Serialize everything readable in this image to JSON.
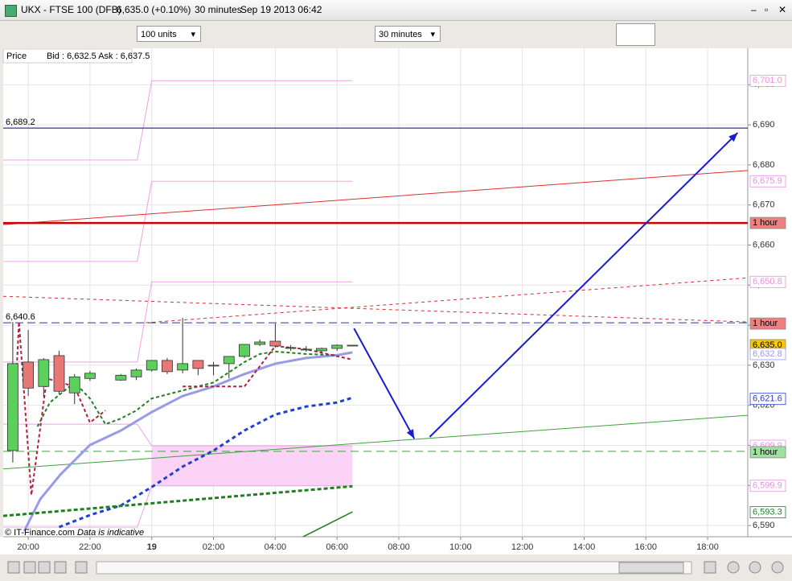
{
  "window": {
    "symbol": "UKX - FTSE 100 (DFB)",
    "quote": "6,635.0 (+0.10%)",
    "timeframe": "30 minutes",
    "datetime": "Sep 19 2013 06:42",
    "units_select": "100 units",
    "interval_select": "30 minutes",
    "price_label": "Price",
    "bid_ask": "Bid : 6,632.5 Ask : 6,637.5",
    "copyright": "© IT-Finance.com",
    "disclaimer": "Data is indicative"
  },
  "chart_data": {
    "type": "candlestick",
    "x": [
      -0.5,
      0,
      0.5,
      1,
      1.5,
      2,
      3,
      3.5,
      4,
      4.5,
      5,
      5.5,
      6,
      6.5,
      7,
      7.5,
      8,
      8.5,
      9,
      9.5,
      10,
      10.5
    ],
    "open": [
      6608.7,
      6630.8,
      6624.7,
      6632.4,
      6623.1,
      6626.7,
      6626.3,
      6627.1,
      6628.8,
      6631.2,
      6628.8,
      6631.2,
      6630.0,
      6630.4,
      6632.2,
      6635.2,
      6636.0,
      6634.4,
      6634.0,
      6633.6,
      6634.2,
      6635.0
    ],
    "high": [
      6640.8,
      6638.8,
      6631.8,
      6633.6,
      6627.8,
      6628.6,
      6627.8,
      6629.2,
      6631.2,
      6631.8,
      6641.8,
      6631.2,
      6630.8,
      6632.2,
      6635.2,
      6636.4,
      6640.4,
      6635.0,
      6634.8,
      6634.4,
      6635.2,
      6635.0
    ],
    "low": [
      6605.7,
      6622.3,
      6622.1,
      6622.7,
      6620.3,
      6626.1,
      6626.1,
      6626.3,
      6628.4,
      6627.8,
      6628.0,
      6627.5,
      6627.5,
      6626.7,
      6631.8,
      6634.8,
      6634.4,
      6633.6,
      6633.4,
      6633.0,
      6633.6,
      6635.0
    ],
    "close": [
      6630.4,
      6624.3,
      6631.4,
      6623.5,
      6627.1,
      6628.0,
      6627.5,
      6628.8,
      6631.2,
      6628.4,
      6630.4,
      6629.2,
      6630.0,
      6632.2,
      6635.2,
      6635.8,
      6634.8,
      6634.4,
      6634.0,
      6634.2,
      6635.0,
      6635.0
    ],
    "up_color": "#5cd05c",
    "down_color": "#e87878",
    "xlim": [
      -0.81,
      23.3
    ],
    "xticks": [
      {
        "value": 0,
        "label": "20:00"
      },
      {
        "value": 2,
        "label": "22:00"
      },
      {
        "value": 4,
        "label": "19",
        "bold": true
      },
      {
        "value": 6,
        "label": "02:00"
      },
      {
        "value": 8,
        "label": "04:00"
      },
      {
        "value": 10,
        "label": "06:00"
      },
      {
        "value": 12,
        "label": "08:00"
      },
      {
        "value": 14,
        "label": "10:00"
      },
      {
        "value": 16,
        "label": "12:00"
      },
      {
        "value": 18,
        "label": "14:00"
      },
      {
        "value": 20,
        "label": "16:00"
      },
      {
        "value": 22,
        "label": "18:00"
      }
    ],
    "ylim": [
      6587.2,
      6709.1
    ],
    "yticks": [
      {
        "value": 6590,
        "label": "6,590"
      },
      {
        "value": 6600,
        "label": "6,600"
      },
      {
        "value": 6610,
        "label": "6,610"
      },
      {
        "value": 6620,
        "label": "6,620"
      },
      {
        "value": 6630,
        "label": "6,630"
      },
      {
        "value": 6640,
        "label": "6,640"
      },
      {
        "value": 6650,
        "label": "6,650"
      },
      {
        "value": 6660,
        "label": "6,660"
      },
      {
        "value": 6670,
        "label": "6,670"
      },
      {
        "value": 6680,
        "label": "6,680"
      },
      {
        "value": 6690,
        "label": "6,690"
      },
      {
        "value": 6700,
        "label": "6,700"
      }
    ],
    "grid": true,
    "band": {
      "color": "#fbd3f6",
      "x": [
        4,
        10.5
      ],
      "values": [
        6599.9,
        6609.9
      ]
    },
    "overlays": [
      {
        "color": "#f0a0e8",
        "width": 1,
        "x": [
          -0.81,
          3.53,
          4,
          10.5
        ],
        "values": [
          6681.2,
          6681.2,
          6701.0,
          6701.0
        ]
      },
      {
        "color": "#f0a0e8",
        "width": 1,
        "x": [
          -0.81,
          3.53,
          4,
          10.5
        ],
        "values": [
          6655.9,
          6655.9,
          6675.9,
          6675.9
        ]
      },
      {
        "color": "#f0a0e8",
        "width": 1,
        "x": [
          -0.81,
          3.53,
          4,
          10.5
        ],
        "values": [
          6630.8,
          6630.8,
          6650.8,
          6650.8
        ]
      },
      {
        "color": "#f0a0e8",
        "width": 1,
        "x": [
          -0.81,
          3.53,
          4,
          10.5
        ],
        "values": [
          6615.3,
          6615.3,
          6609.9,
          6609.9
        ]
      },
      {
        "color": "#f0a0e8",
        "width": 1,
        "x": [
          -0.81,
          3.53,
          4,
          10.5
        ],
        "values": [
          6589.6,
          6589.6,
          6599.9,
          6599.9
        ]
      },
      {
        "color": "#e03030",
        "width": 1,
        "x": [
          -0.81,
          23.3
        ],
        "values": [
          6665.1,
          6678.6
        ]
      },
      {
        "color": "#cc0000",
        "width": 2.5,
        "x": [
          -0.81,
          23.3
        ],
        "values": [
          6665.5,
          6665.5
        ]
      },
      {
        "color": "#d03030",
        "width": 1,
        "dash": "4 4",
        "x": [
          -0.81,
          23.3
        ],
        "values": [
          6647.2,
          6640.8
        ]
      },
      {
        "color": "#d03030",
        "width": 1,
        "dash": "4 4",
        "x": [
          3.8,
          23.3
        ],
        "values": [
          6640.6,
          6651.8
        ]
      },
      {
        "color": "#000080",
        "width": 1,
        "x": [
          -0.81,
          23.3
        ],
        "values": [
          6689.2,
          6689.2
        ]
      },
      {
        "color": "#303090",
        "width": 1,
        "dash": "10 5",
        "x": [
          -0.81,
          23.3
        ],
        "values": [
          6640.6,
          6640.6
        ]
      },
      {
        "color": "#40a040",
        "width": 1,
        "x": [
          -0.81,
          23.3
        ],
        "values": [
          6604.1,
          6617.5
        ]
      },
      {
        "color": "#40a040",
        "width": 1,
        "dash": "10 6",
        "x": [
          -0.81,
          23.3
        ],
        "values": [
          6608.5,
          6608.5
        ]
      },
      {
        "color": "#9a9ae8",
        "width": 3,
        "x": [
          -0.13,
          0.39,
          1.04,
          2,
          3,
          4,
          5,
          6,
          7,
          8,
          9,
          10,
          10.5
        ],
        "values": [
          6588.6,
          6596.6,
          6602.7,
          6610.1,
          6613.7,
          6618.3,
          6622.3,
          6624.7,
          6627.8,
          6630.4,
          6631.8,
          6632.5,
          6633.2
        ]
      },
      {
        "color": "#208020",
        "width": 2,
        "dash": "4 3",
        "x": [
          0.3,
          0.7,
          1.5,
          2,
          2.5,
          3,
          3.5,
          4,
          4.5,
          5,
          6,
          7,
          7.5,
          8,
          9,
          10
        ],
        "values": [
          6614.7,
          6620.7,
          6625.7,
          6621.7,
          6615.3,
          6616.7,
          6618.7,
          6621.7,
          6622.7,
          6623.7,
          6625.7,
          6630.8,
          6632.8,
          6633.4,
          6632.8,
          6632.5
        ]
      },
      {
        "color": "#b02040",
        "width": 2,
        "dash": "4 3",
        "x": [
          -0.5,
          -0.3,
          0.1,
          0.6,
          1.5,
          2,
          2.5,
          3,
          5,
          7,
          8,
          9,
          10.5
        ],
        "values": [
          6608.7,
          6640.8,
          6597.6,
          6626.7,
          6624.7,
          6615.7,
          6618.7,
          null,
          6624.7,
          6624.7,
          6634.8,
          6634.0,
          6631.4
        ]
      },
      {
        "color": "#2040d0",
        "width": 3,
        "dash": "5 4",
        "x": [
          1,
          2,
          3,
          4,
          5,
          6,
          7,
          8,
          9,
          10,
          10.5
        ],
        "values": [
          6589.6,
          6592.6,
          6595.0,
          6599.6,
          6604.7,
          6608.7,
          6613.7,
          6617.7,
          6619.7,
          6620.7,
          6621.9
        ]
      },
      {
        "color": "#208020",
        "width": 3,
        "dash": "5 3",
        "x": [
          -0.81,
          10.5
        ],
        "values": [
          6592.4,
          6599.8
        ]
      },
      {
        "color": "#208020",
        "width": 1.5,
        "x": [
          8.85,
          10.5
        ],
        "values": [
          6587.0,
          6593.4
        ]
      },
      {
        "color": "#1a1ad0",
        "width": 2,
        "arrow": true,
        "x": [
          10.55,
          12.5
        ],
        "values": [
          6639.2,
          6611.7
        ]
      },
      {
        "color": "#1a1ad0",
        "width": 2,
        "arrow": true,
        "x": [
          13.0,
          22.97
        ],
        "values": [
          6612.1,
          6688.0
        ]
      }
    ],
    "line_labels": [
      {
        "value": 6689.2,
        "label": "6,689.2"
      },
      {
        "value": 6640.6,
        "label": "6,640.6"
      }
    ],
    "price_labels": [
      {
        "value": 6701.0,
        "label": "6,701.0",
        "color": "#e890e0",
        "background": "#ffffff"
      },
      {
        "value": 6675.9,
        "label": "6,675.9",
        "color": "#e890e0",
        "background": "#ffffff"
      },
      {
        "value": 6665.5,
        "label": "1 hour",
        "color": "#000000",
        "background": "#f08080"
      },
      {
        "value": 6650.8,
        "label": "6,650.8",
        "color": "#e890e0",
        "background": "#ffffff"
      },
      {
        "value": 6640.4,
        "label": "1 hour",
        "color": "#000000",
        "background": "#f08080"
      },
      {
        "value": 6635.0,
        "label": "6,635.0",
        "color": "#000000",
        "background": "#f8c800"
      },
      {
        "value": 6632.8,
        "label": "6,632.8",
        "color": "#9a9ae8",
        "background": "#ffffff"
      },
      {
        "value": 6621.6,
        "label": "6,621.6",
        "color": "#2040d0",
        "background": "#ffffff"
      },
      {
        "value": 6609.9,
        "label": "6,609.9",
        "color": "#e890e0",
        "background": "#ffffff"
      },
      {
        "value": 6608.3,
        "label": "1 hour",
        "color": "#000000",
        "background": "#a0e0a0"
      },
      {
        "value": 6599.9,
        "label": "6,599.9",
        "color": "#e890e0",
        "background": "#ffffff"
      },
      {
        "value": 6593.3,
        "label": "6,593.3",
        "color": "#208020",
        "background": "#ffffff"
      }
    ]
  }
}
